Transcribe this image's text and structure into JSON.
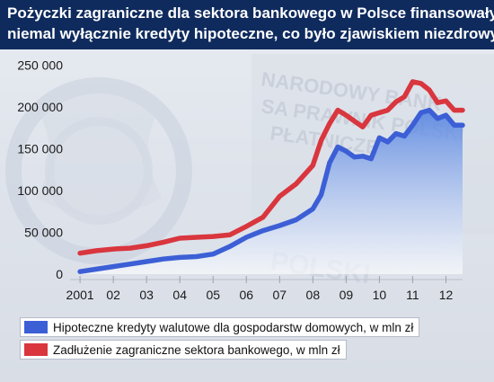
{
  "header": {
    "title_line_1": "Pożyczki zagraniczne dla sektora bankowego w Polsce finansowały",
    "title_line_2": "niemal wyłącznie kredyty hipoteczne, co było zjawiskiem niezdrowym"
  },
  "colors": {
    "header_bg": "#0f2b5e",
    "series_blue": "#3c5fd6",
    "series_red": "#d9363e",
    "area_fill": "#5b87e0"
  },
  "chart_data": {
    "type": "line",
    "title": "Pożyczki zagraniczne dla sektora bankowego w Polsce finansowały niemal wyłącznie kredyty hipoteczne, co było zjawiskiem niezdrowym",
    "xlabel": "",
    "ylabel": "",
    "x_tick_labels": [
      "2001",
      "02",
      "03",
      "04",
      "05",
      "06",
      "07",
      "08",
      "09",
      "10",
      "11",
      "12"
    ],
    "x_tick_positions": [
      2001,
      2002,
      2003,
      2004,
      2005,
      2006,
      2007,
      2008,
      2009,
      2010,
      2011,
      2012
    ],
    "y_tick_labels": [
      "0",
      "50 000",
      "100 000",
      "150 000",
      "200 000",
      "250 000"
    ],
    "y_tick_values": [
      0,
      50000,
      100000,
      150000,
      200000,
      250000
    ],
    "ylim": [
      0,
      260000
    ],
    "xlim": [
      2000.7,
      2012.5
    ],
    "grid": false,
    "legend_position": "bottom-left",
    "series": [
      {
        "name": "Hipoteczne kredyty walutowe dla gospodarstw domowych, w mln zł",
        "color": "#3c5fd6",
        "fill_area": true,
        "x": [
          2001.0,
          2001.5,
          2002.0,
          2002.5,
          2003.0,
          2003.5,
          2004.0,
          2004.5,
          2005.0,
          2005.5,
          2006.0,
          2006.5,
          2007.0,
          2007.5,
          2008.0,
          2008.25,
          2008.5,
          2008.75,
          2009.0,
          2009.25,
          2009.5,
          2009.75,
          2010.0,
          2010.25,
          2010.5,
          2010.75,
          2011.0,
          2011.25,
          2011.5,
          2011.75,
          2012.0,
          2012.25,
          2012.5
        ],
        "y": [
          3000,
          6000,
          9000,
          12000,
          15000,
          18000,
          20000,
          21000,
          24000,
          33000,
          44000,
          52000,
          58000,
          65000,
          78000,
          95000,
          133000,
          152000,
          147000,
          140000,
          141000,
          138000,
          163000,
          158000,
          168000,
          165000,
          178000,
          193000,
          196000,
          186000,
          190000,
          178000,
          178000
        ]
      },
      {
        "name": "Zadłużenie zagraniczne sektora bankowego, w mln zł",
        "color": "#d9363e",
        "fill_area": false,
        "x": [
          2001.0,
          2001.5,
          2002.0,
          2002.5,
          2003.0,
          2003.5,
          2004.0,
          2004.5,
          2005.0,
          2005.5,
          2006.0,
          2006.5,
          2007.0,
          2007.5,
          2008.0,
          2008.25,
          2008.5,
          2008.75,
          2009.0,
          2009.25,
          2009.5,
          2009.75,
          2010.0,
          2010.25,
          2010.5,
          2010.75,
          2011.0,
          2011.25,
          2011.5,
          2011.75,
          2012.0,
          2012.25,
          2012.5
        ],
        "y": [
          25000,
          28000,
          30000,
          31000,
          34000,
          38000,
          43000,
          44000,
          45000,
          47000,
          57000,
          68000,
          93000,
          108000,
          130000,
          160000,
          180000,
          196000,
          190000,
          183000,
          176000,
          190000,
          193000,
          196000,
          206000,
          212000,
          230000,
          228000,
          220000,
          205000,
          207000,
          196000,
          196000
        ]
      }
    ]
  }
}
